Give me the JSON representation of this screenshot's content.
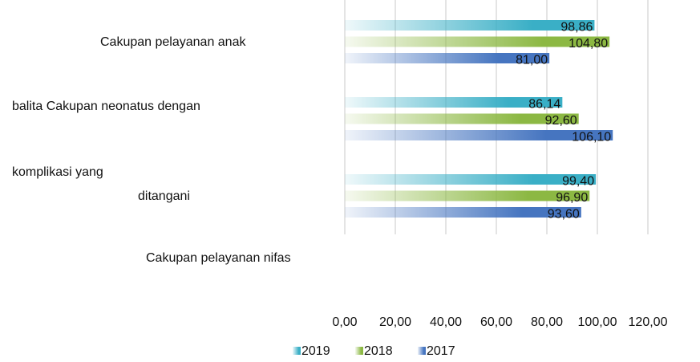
{
  "chart_data": {
    "type": "bar",
    "orientation": "horizontal",
    "categories": [
      [
        "Cakupan pelayanan anak"
      ],
      [
        "balita Cakupan neonatus dengan"
      ],
      [
        "komplikasi yang",
        "ditangani"
      ]
    ],
    "annotations": [
      "Cakupan pelayanan nifas"
    ],
    "series": [
      {
        "name": "2019",
        "color": "#3aafc6",
        "values": [
          98.86,
          86.14,
          99.4
        ],
        "value_labels": [
          "98,86",
          "86,14",
          "99,40"
        ]
      },
      {
        "name": "2018",
        "color": "#8cb843",
        "values": [
          104.8,
          92.6,
          96.9
        ],
        "value_labels": [
          "104,80",
          "92,60",
          "96,90"
        ]
      },
      {
        "name": "2017",
        "color": "#4675c0",
        "values": [
          81.0,
          106.1,
          93.6
        ],
        "value_labels": [
          "81,00",
          "106,10",
          "93,60"
        ]
      }
    ],
    "xlim": [
      0,
      120
    ],
    "xticks": [
      {
        "value": 0,
        "label": "0,00"
      },
      {
        "value": 20,
        "label": "20,00"
      },
      {
        "value": 40,
        "label": "40,00"
      },
      {
        "value": 60,
        "label": "60,00"
      },
      {
        "value": 80,
        "label": "80,00"
      },
      {
        "value": 100,
        "label": "100,00"
      },
      {
        "value": 120,
        "label": "120,00"
      }
    ],
    "grid": true,
    "legend": "bottom"
  }
}
